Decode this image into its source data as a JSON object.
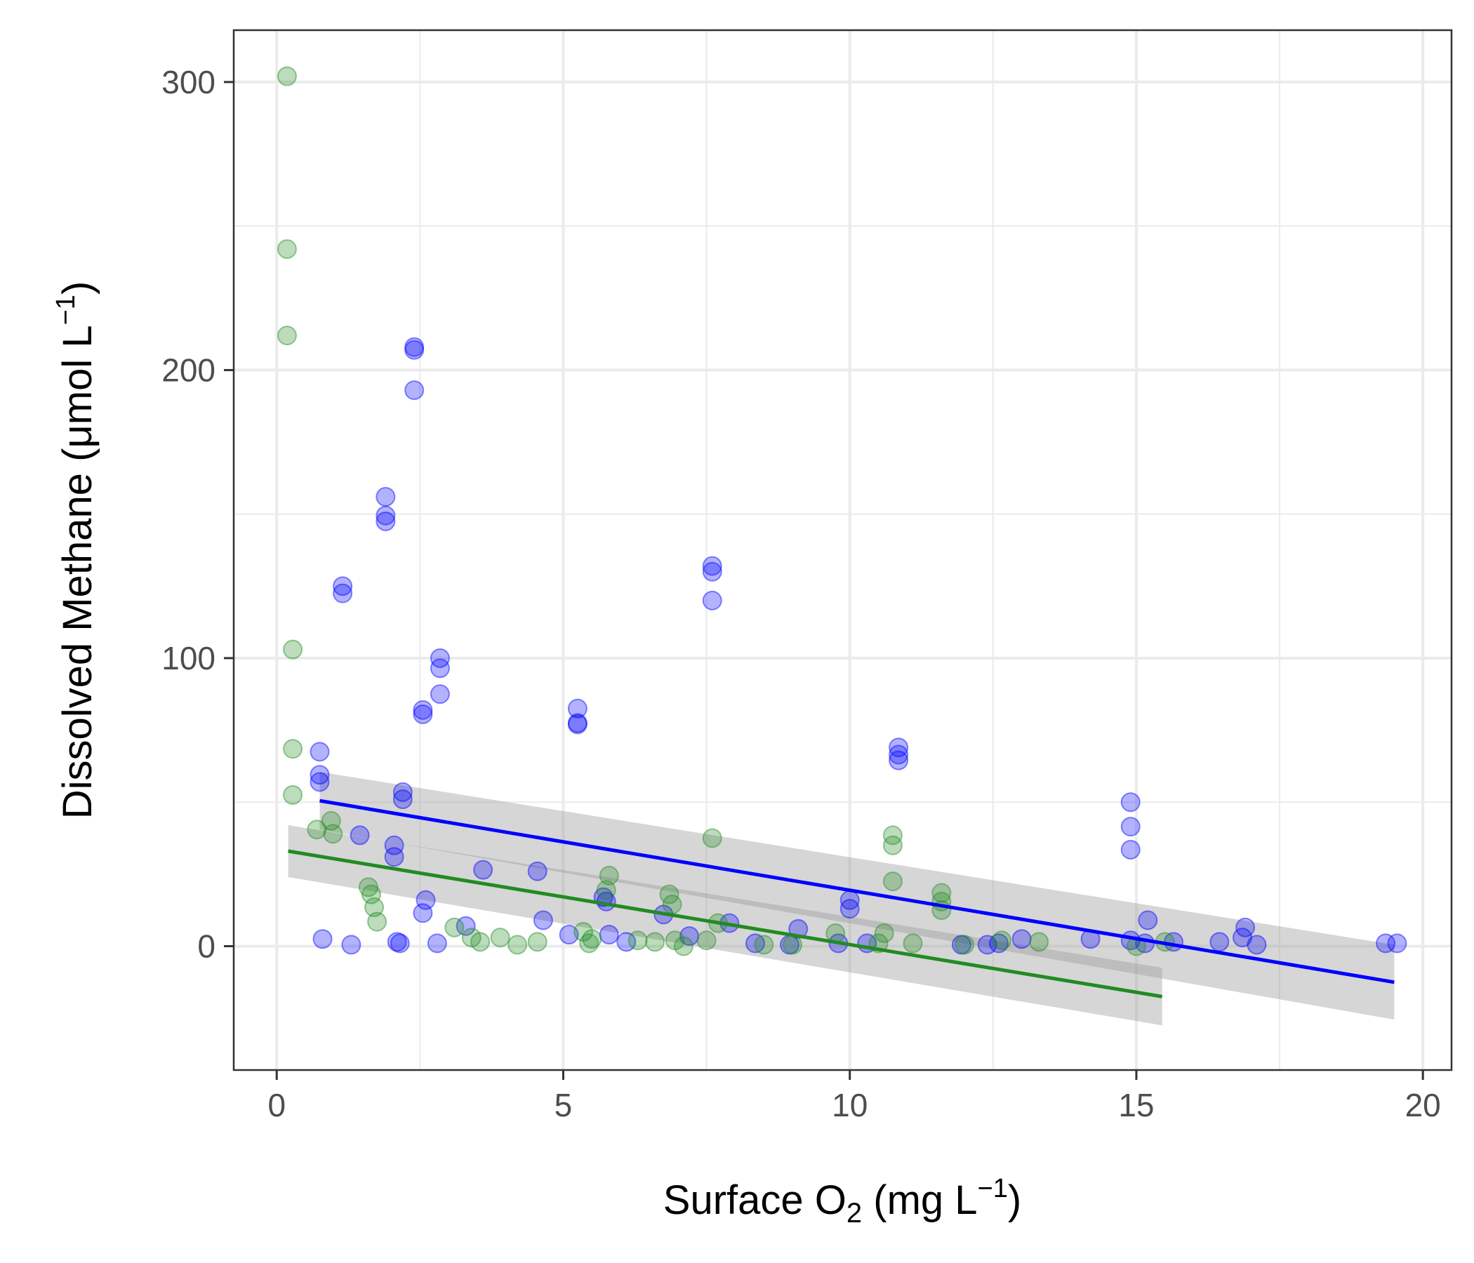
{
  "chart_data": {
    "type": "scatter",
    "title": "",
    "xlabel": {
      "pre": "Surface O",
      "sub": "2",
      "mid": " (mg L",
      "sup": "−1",
      "post": ")"
    },
    "ylabel": {
      "pre": "Dissolved Methane (μmol L",
      "sup": "−1",
      "post": ")"
    },
    "xlim": [
      -0.75,
      20.5
    ],
    "ylim": [
      -43,
      318
    ],
    "x_ticks": [
      0,
      5,
      10,
      15,
      20
    ],
    "x_tick_labels": [
      "0",
      "5",
      "10",
      "15",
      "20"
    ],
    "y_ticks": [
      0,
      100,
      200,
      300
    ],
    "y_tick_labels": [
      "0",
      "100",
      "200",
      "300"
    ],
    "grid": true,
    "legend": "none",
    "series": [
      {
        "color": "#0000ff",
        "points": [
          [
            0.8,
            2.5
          ],
          [
            1.3,
            0.5
          ],
          [
            2.1,
            1.5
          ],
          [
            2.15,
            1.0
          ],
          [
            2.8,
            1.0
          ],
          [
            3.3,
            7.0
          ],
          [
            4.65,
            9.0
          ],
          [
            5.1,
            4.0
          ],
          [
            6.1,
            1.5
          ],
          [
            5.8,
            4.0
          ],
          [
            6.75,
            11.0
          ],
          [
            7.2,
            3.5
          ],
          [
            7.9,
            8.0
          ],
          [
            8.35,
            1.0
          ],
          [
            8.95,
            0.5
          ],
          [
            9.1,
            6.0
          ],
          [
            9.8,
            1.0
          ],
          [
            10.3,
            1.0
          ],
          [
            11.95,
            0.5
          ],
          [
            12.4,
            0.5
          ],
          [
            12.6,
            1.0
          ],
          [
            13.0,
            2.5
          ],
          [
            14.2,
            2.5
          ],
          [
            14.9,
            2.0
          ],
          [
            15.15,
            1.0
          ],
          [
            15.2,
            9.0
          ],
          [
            15.65,
            1.5
          ],
          [
            16.45,
            1.5
          ],
          [
            17.1,
            0.5
          ],
          [
            19.35,
            1.0
          ],
          [
            19.55,
            1.0
          ],
          [
            2.55,
            11.5
          ],
          [
            2.6,
            16.0
          ],
          [
            3.6,
            26.5
          ],
          [
            4.55,
            26.0
          ],
          [
            2.05,
            35.0
          ],
          [
            2.05,
            31.0
          ],
          [
            1.45,
            38.5
          ],
          [
            2.2,
            51.0
          ],
          [
            2.2,
            53.5
          ],
          [
            0.75,
            57.0
          ],
          [
            0.75,
            59.5
          ],
          [
            0.75,
            67.5
          ],
          [
            2.55,
            82.0
          ],
          [
            2.55,
            80.5
          ],
          [
            2.85,
            100.0
          ],
          [
            2.85,
            96.5
          ],
          [
            2.85,
            87.5
          ],
          [
            1.15,
            125.0
          ],
          [
            1.15,
            122.5
          ],
          [
            1.9,
            156.0
          ],
          [
            1.9,
            149.5
          ],
          [
            1.9,
            147.5
          ],
          [
            2.4,
            208.0
          ],
          [
            2.4,
            207.0
          ],
          [
            2.4,
            193.0
          ],
          [
            5.25,
            82.5
          ],
          [
            5.25,
            77.5
          ],
          [
            5.25,
            77.0
          ],
          [
            7.6,
            132.0
          ],
          [
            7.6,
            130.0
          ],
          [
            7.6,
            120.0
          ],
          [
            5.7,
            17.0
          ],
          [
            5.75,
            15.5
          ],
          [
            10.0,
            16.0
          ],
          [
            10.0,
            13.0
          ],
          [
            10.85,
            69.0
          ],
          [
            10.85,
            64.5
          ],
          [
            10.85,
            66.5
          ],
          [
            14.9,
            50.0
          ],
          [
            14.9,
            41.5
          ],
          [
            14.9,
            33.5
          ],
          [
            16.9,
            6.5
          ],
          [
            16.85,
            3.0
          ]
        ]
      },
      {
        "color": "#228b22",
        "points": [
          [
            0.18,
            302.0
          ],
          [
            0.18,
            242.0
          ],
          [
            0.18,
            212.0
          ],
          [
            0.28,
            103.0
          ],
          [
            0.28,
            68.5
          ],
          [
            0.28,
            52.5
          ],
          [
            0.7,
            40.5
          ],
          [
            0.98,
            39.0
          ],
          [
            0.95,
            43.5
          ],
          [
            1.6,
            20.5
          ],
          [
            1.65,
            18.0
          ],
          [
            1.7,
            13.5
          ],
          [
            1.75,
            8.5
          ],
          [
            3.1,
            6.5
          ],
          [
            3.4,
            3.0
          ],
          [
            3.55,
            1.5
          ],
          [
            3.9,
            3.0
          ],
          [
            4.2,
            0.5
          ],
          [
            4.55,
            1.5
          ],
          [
            5.35,
            5.0
          ],
          [
            5.5,
            2.5
          ],
          [
            5.8,
            24.5
          ],
          [
            5.75,
            19.5
          ],
          [
            6.3,
            2.0
          ],
          [
            6.6,
            1.5
          ],
          [
            6.85,
            18.0
          ],
          [
            6.9,
            14.5
          ],
          [
            7.1,
            0.0
          ],
          [
            7.5,
            2.0
          ],
          [
            7.6,
            37.5
          ],
          [
            7.7,
            8.0
          ],
          [
            8.5,
            0.5
          ],
          [
            9.0,
            0.5
          ],
          [
            9.75,
            4.5
          ],
          [
            10.5,
            1.0
          ],
          [
            10.6,
            4.5
          ],
          [
            10.75,
            38.5
          ],
          [
            10.75,
            35.0
          ],
          [
            10.75,
            22.5
          ],
          [
            11.1,
            1.0
          ],
          [
            11.6,
            18.5
          ],
          [
            11.6,
            15.5
          ],
          [
            11.6,
            12.5
          ],
          [
            12.0,
            0.5
          ],
          [
            12.65,
            2.0
          ],
          [
            13.3,
            1.5
          ],
          [
            15.0,
            0.0
          ],
          [
            15.5,
            1.5
          ],
          [
            5.45,
            1.0
          ],
          [
            6.95,
            2.0
          ]
        ]
      }
    ],
    "fits": [
      {
        "color": "#0000ff",
        "x": [
          0.75,
          19.5
        ],
        "y": [
          50.5,
          -12.5
        ],
        "ci_lower": [
          40.5,
          -25.5
        ],
        "ci_upper": [
          60.5,
          0.5
        ]
      },
      {
        "color": "#228b22",
        "x": [
          0.2,
          15.45
        ],
        "y": [
          33.0,
          -17.5
        ],
        "ci_lower": [
          24.0,
          -27.5
        ],
        "ci_upper": [
          42.0,
          -7.5
        ]
      }
    ]
  }
}
